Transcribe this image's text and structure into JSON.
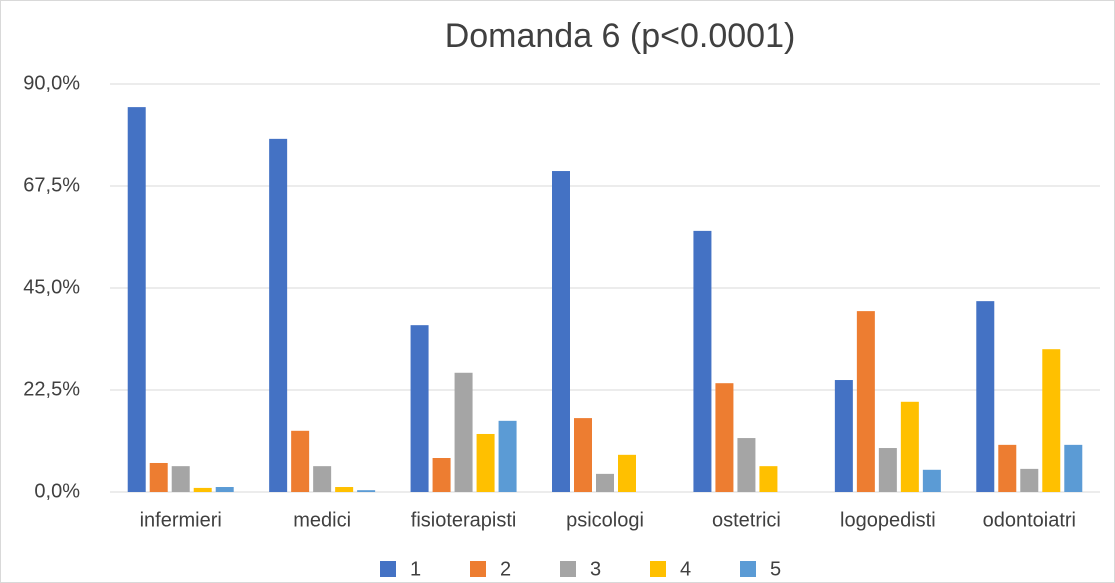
{
  "chart_data": {
    "type": "bar",
    "title": "Domanda 6 (p<0.0001)",
    "categories": [
      "infermieri",
      "medici",
      "fisioterapisti",
      "psicologi",
      "ostetrici",
      "logopedisti",
      "odontoiatri"
    ],
    "series": [
      {
        "name": "1",
        "color": "#4472c4",
        "values": [
          84.9,
          77.9,
          36.8,
          70.8,
          57.6,
          24.7,
          42.1
        ]
      },
      {
        "name": "2",
        "color": "#ed7d31",
        "values": [
          6.4,
          13.5,
          7.5,
          16.3,
          24.0,
          39.9,
          10.4
        ]
      },
      {
        "name": "3",
        "color": "#a5a5a5",
        "values": [
          5.7,
          5.7,
          26.3,
          4.0,
          11.9,
          9.7,
          5.1
        ]
      },
      {
        "name": "4",
        "color": "#ffc000",
        "values": [
          0.9,
          1.1,
          12.8,
          8.2,
          5.7,
          19.9,
          31.5
        ]
      },
      {
        "name": "5",
        "color": "#5b9bd5",
        "values": [
          1.1,
          0.4,
          15.7,
          0,
          0,
          4.9,
          10.4
        ]
      }
    ],
    "ylim": [
      0,
      90
    ],
    "yticks": [
      {
        "value": 0,
        "label": "0,0%"
      },
      {
        "value": 22.5,
        "label": "22,5%"
      },
      {
        "value": 45,
        "label": "45,0%"
      },
      {
        "value": 67.5,
        "label": "67,5%"
      },
      {
        "value": 90,
        "label": "90,0%"
      }
    ],
    "grid": true,
    "legend": "bottom"
  }
}
